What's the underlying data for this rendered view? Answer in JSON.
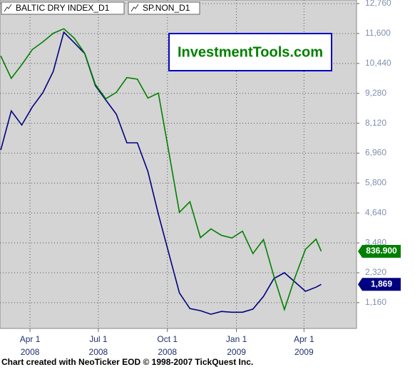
{
  "chart_data": {
    "type": "line",
    "annotation": "InvestmentTools.com",
    "credit": "Chart created with NeoTicker EOD © 1998-2007 TickQuest Inc.",
    "x": [
      "2008-02-22",
      "2008-03-07",
      "2008-03-21",
      "2008-04-04",
      "2008-04-18",
      "2008-05-02",
      "2008-05-16",
      "2008-05-30",
      "2008-06-13",
      "2008-06-27",
      "2008-07-11",
      "2008-07-25",
      "2008-08-08",
      "2008-08-22",
      "2008-09-05",
      "2008-09-19",
      "2008-10-03",
      "2008-10-17",
      "2008-10-31",
      "2008-11-14",
      "2008-11-28",
      "2008-12-12",
      "2008-12-26",
      "2009-01-09",
      "2009-01-23",
      "2009-02-06",
      "2009-02-20",
      "2009-03-06",
      "2009-03-20",
      "2009-04-03",
      "2009-04-17",
      "2009-04-24"
    ],
    "xlim": [
      "2008-02-21",
      "2009-06-10"
    ],
    "xticks": [
      {
        "value": "2008-04-01",
        "label": "Apr 1",
        "year": "2008"
      },
      {
        "value": "2008-07-01",
        "label": "Jul 1",
        "year": "2008"
      },
      {
        "value": "2008-10-01",
        "label": "Oct 1",
        "year": "2008"
      },
      {
        "value": "2009-01-01",
        "label": "Jan 1",
        "year": "2009"
      },
      {
        "value": "2009-04-01",
        "label": "Apr 1",
        "year": "2009"
      }
    ],
    "ylim": [
      160,
      12900
    ],
    "yticks": [
      {
        "value": 12760,
        "label": "12,760"
      },
      {
        "value": 11600,
        "label": "11,600"
      },
      {
        "value": 10440,
        "label": "10,440"
      },
      {
        "value": 9280,
        "label": "9,280"
      },
      {
        "value": 8120,
        "label": "8,120"
      },
      {
        "value": 6960,
        "label": "6,960"
      },
      {
        "value": 5800,
        "label": "5,800"
      },
      {
        "value": 4640,
        "label": "4,640"
      },
      {
        "value": 3480,
        "label": "3,480"
      },
      {
        "value": 2320,
        "label": "2,320"
      },
      {
        "value": 1160,
        "label": "1,160"
      }
    ],
    "y2lim": [
      633,
      1501
    ],
    "grid": true,
    "series": [
      {
        "name": "BALTIC DRY INDEX_D1",
        "color": "#000080",
        "values": [
          7080,
          8600,
          8050,
          8750,
          9300,
          10130,
          11650,
          11240,
          10820,
          9580,
          9020,
          8470,
          7360,
          7360,
          6250,
          4590,
          3070,
          1540,
          930,
          850,
          710,
          820,
          790,
          790,
          910,
          1400,
          2100,
          2320,
          1960,
          1600,
          1760,
          1869
        ],
        "value_labels": [
          null,
          null,
          null,
          null,
          null,
          null,
          null,
          null,
          null,
          null,
          null,
          null,
          null,
          null,
          null,
          null,
          null,
          null,
          null,
          null,
          null,
          null,
          null,
          null,
          null,
          null,
          null,
          null,
          null,
          null,
          null,
          "1,869"
        ]
      },
      {
        "name": "SP.NON_D1",
        "color": "#008000",
        "axis": "y2",
        "values": [
          1353,
          1294,
          1330,
          1370,
          1390,
          1413,
          1425,
          1400,
          1360,
          1278,
          1240,
          1257,
          1296,
          1292,
          1242,
          1255,
          1099,
          940,
          968,
          873,
          896,
          879,
          872,
          890,
          831,
          868,
          770,
          683,
          768,
          842,
          869,
          836.9
        ],
        "value_labels": [
          null,
          null,
          null,
          null,
          null,
          null,
          null,
          null,
          null,
          null,
          null,
          null,
          null,
          null,
          null,
          null,
          null,
          null,
          null,
          null,
          null,
          null,
          null,
          null,
          null,
          null,
          null,
          null,
          null,
          null,
          null,
          "836.900"
        ]
      }
    ]
  }
}
